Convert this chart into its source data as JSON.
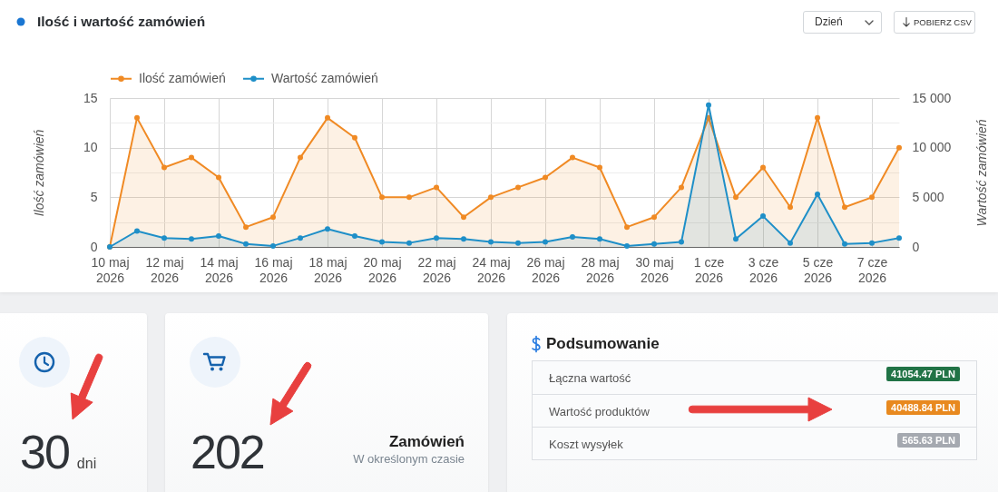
{
  "chart_data": [
    {
      "type": "area",
      "title": "Ilość i wartość zamówień",
      "annotations": [
        "Dzień",
        "POBIERZ CSV"
      ],
      "x": [
        "2026-05-10",
        "2026-05-11",
        "2026-05-12",
        "2026-05-13",
        "2026-05-14",
        "2026-05-15",
        "2026-05-16",
        "2026-05-17",
        "2026-05-18",
        "2026-05-19",
        "2026-05-20",
        "2026-05-21",
        "2026-05-22",
        "2026-05-23",
        "2026-05-24",
        "2026-05-25",
        "2026-05-26",
        "2026-05-27",
        "2026-05-28",
        "2026-05-29",
        "2026-05-30",
        "2026-05-31",
        "2026-06-01",
        "2026-06-02",
        "2026-06-03",
        "2026-06-04",
        "2026-06-05",
        "2026-06-06",
        "2026-06-07",
        "2026-06-08"
      ],
      "series": [
        {
          "name": "Ilość zamówień",
          "color": "#f08a24",
          "values": [
            0,
            13,
            8,
            9,
            7,
            2,
            3,
            9,
            13,
            11,
            5,
            5,
            6,
            3,
            5,
            6,
            7,
            9,
            8,
            2,
            3,
            6,
            13,
            5,
            8,
            4,
            13,
            4,
            5,
            10
          ]
        },
        {
          "name": "Wartość zamówień",
          "color": "#1e8fc8",
          "axis": "y2",
          "values": [
            0,
            1600,
            900,
            800,
            1100,
            300,
            100,
            900,
            1800,
            1100,
            500,
            400,
            900,
            800,
            500,
            400,
            500,
            1000,
            800,
            100,
            300,
            500,
            14300,
            800,
            3100,
            400,
            5300,
            300,
            400,
            900
          ]
        }
      ],
      "xlim": [
        "2026-05-10",
        "2026-06-08"
      ],
      "xticks": [
        {
          "value": "2026-05-10",
          "label": "10 maj 2026"
        },
        {
          "value": "2026-05-12",
          "label": "12 maj 2026"
        },
        {
          "value": "2026-05-14",
          "label": "14 maj 2026"
        },
        {
          "value": "2026-05-16",
          "label": "16 maj 2026"
        },
        {
          "value": "2026-05-18",
          "label": "18 maj 2026"
        },
        {
          "value": "2026-05-20",
          "label": "20 maj 2026"
        },
        {
          "value": "2026-05-22",
          "label": "22 maj 2026"
        },
        {
          "value": "2026-05-24",
          "label": "24 maj 2026"
        },
        {
          "value": "2026-05-26",
          "label": "26 maj 2026"
        },
        {
          "value": "2026-05-28",
          "label": "28 maj 2026"
        },
        {
          "value": "2026-05-30",
          "label": "30 maj 2026"
        },
        {
          "value": "2026-06-01",
          "label": "1 cze 2026"
        },
        {
          "value": "2026-06-03",
          "label": "3 cze 2026"
        },
        {
          "value": "2026-06-05",
          "label": "5 cze 2026"
        },
        {
          "value": "2026-06-07",
          "label": "7 cze 2026"
        }
      ],
      "ylabel": "Ilość zamówień",
      "y2label": "Wartość zamówień",
      "ylim": [
        0,
        15
      ],
      "yticks": [
        0,
        {
          "value": 2.5,
          "label": null
        },
        5,
        {
          "value": 7.5,
          "label": null
        },
        10,
        {
          "value": 12.5,
          "label": null
        },
        15
      ],
      "y2lim": [
        0,
        15000
      ],
      "y2ticks": [
        0,
        {
          "value": 5000,
          "label": "5 000"
        },
        {
          "value": 10000,
          "label": "10 000"
        },
        {
          "value": 15000,
          "label": "15 000"
        }
      ],
      "grid": true,
      "legend": "top left",
      "marker": "circle",
      "line_style": "solid"
    },
    {
      "type": "other",
      "annotations": [
        "30",
        "dni"
      ]
    },
    {
      "type": "other",
      "title": "Zamówień",
      "subtitle": "W określonym czasie",
      "annotations": [
        "202"
      ]
    },
    {
      "type": "other",
      "title": "Podsumowanie",
      "categories": [
        "Łączna wartość",
        "Wartość produktów",
        "Koszt wysyłek"
      ],
      "value_labels": [
        "41054.47 PLN",
        "40488.84 PLN",
        "565.63 PLN"
      ]
    }
  ]
}
